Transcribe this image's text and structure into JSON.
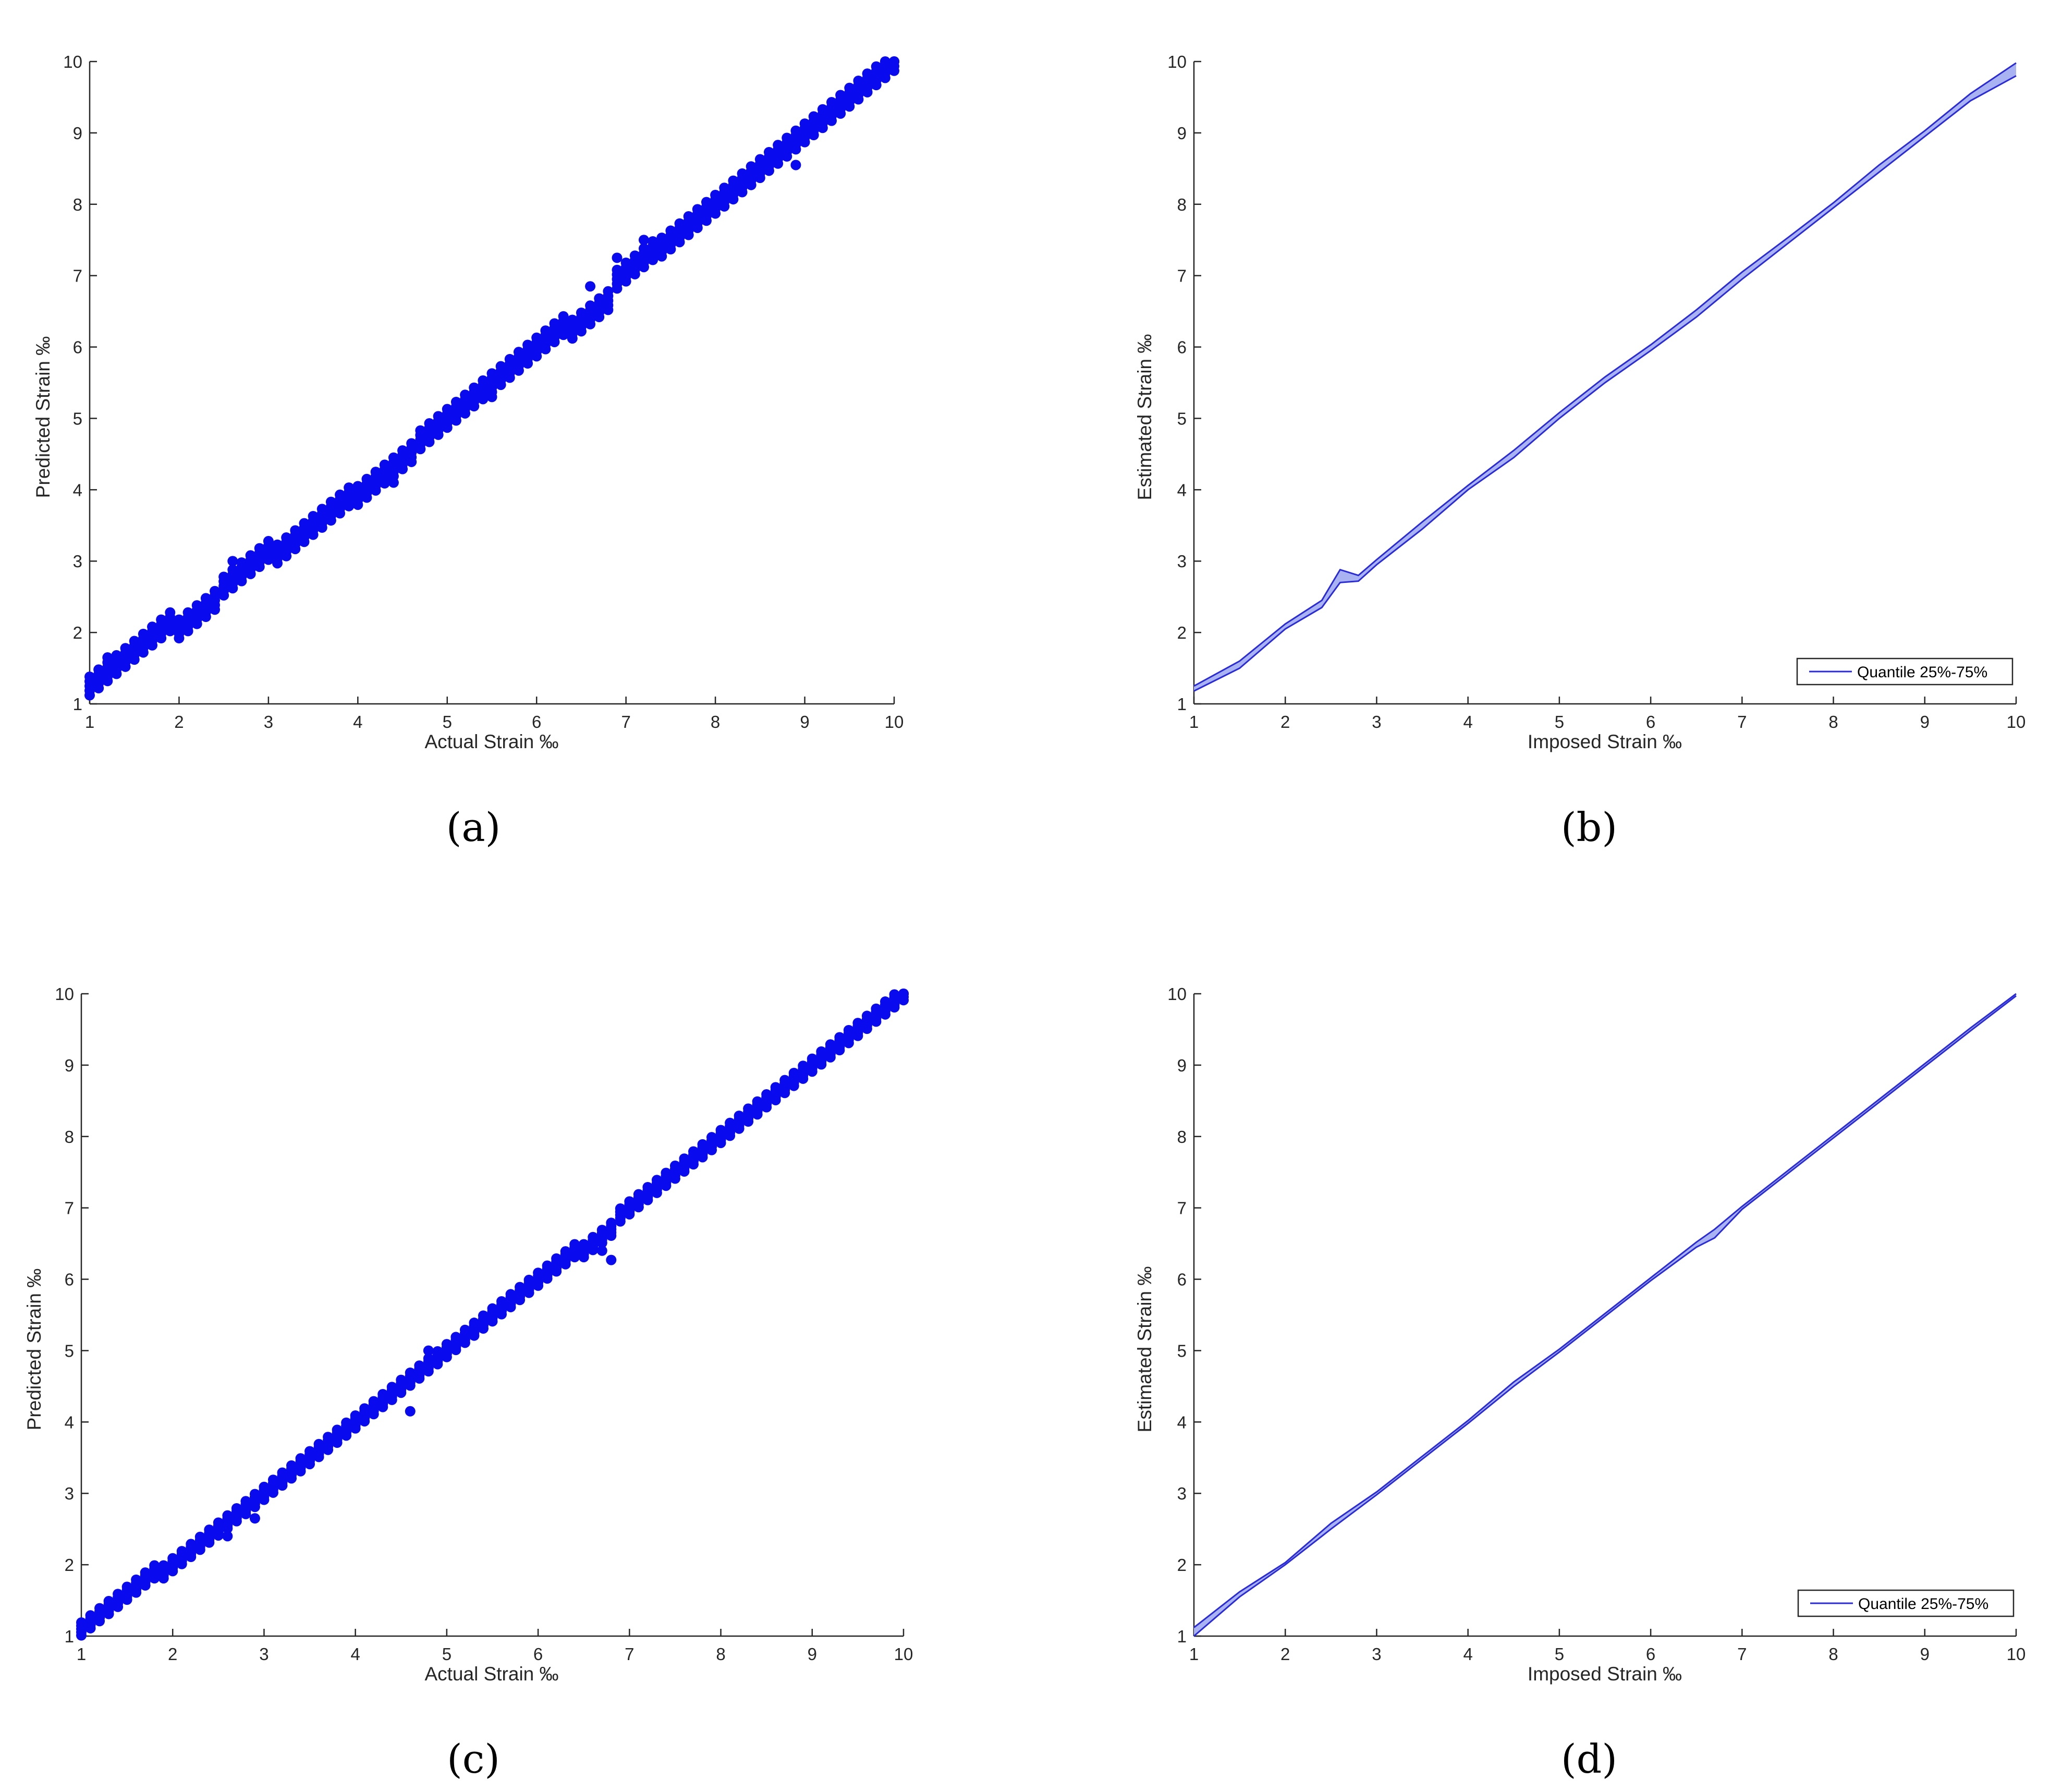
{
  "chart_data": [
    {
      "panel_label": "(a)",
      "type": "scatter",
      "xlabel": "Actual Strain ‰",
      "ylabel": "Predicted Strain ‰",
      "xlim": [
        1,
        10
      ],
      "ylim": [
        1,
        10
      ],
      "xticks": [
        1,
        2,
        3,
        4,
        5,
        6,
        7,
        8,
        9,
        10
      ],
      "yticks": [
        1,
        2,
        3,
        4,
        5,
        6,
        7,
        8,
        9,
        10
      ],
      "x_step": 0.1,
      "spread": 0.13,
      "deviation": [
        {
          "x": [
            1.0,
            2.0
          ],
          "dy": 0.25
        },
        {
          "x": [
            2.0,
            2.4
          ],
          "dy": 0.05
        },
        {
          "x": [
            2.5,
            3.0
          ],
          "dy": 0.15
        },
        {
          "x": [
            4.0,
            4.6
          ],
          "dy": -0.08
        },
        {
          "x": [
            6.4,
            6.9
          ],
          "dy": -0.15
        },
        {
          "x": [
            6.9,
            7.3
          ],
          "dy": 0.05
        },
        {
          "x": [
            8.6,
            8.9
          ],
          "dy": 0.0
        }
      ],
      "outliers": [
        [
          1.2,
          1.65
        ],
        [
          2.6,
          3.0
        ],
        [
          4.4,
          4.1
        ],
        [
          5.5,
          5.3
        ],
        [
          6.6,
          6.85
        ],
        [
          6.9,
          7.25
        ],
        [
          7.2,
          7.5
        ],
        [
          8.9,
          8.55
        ]
      ],
      "color": "#0a0aef",
      "grid": false
    },
    {
      "panel_label": "(b)",
      "type": "area",
      "xlabel": "Imposed Strain ‰",
      "ylabel": "Estimated Strain ‰",
      "xlim": [
        1,
        10
      ],
      "ylim": [
        1,
        10
      ],
      "xticks": [
        1,
        2,
        3,
        4,
        5,
        6,
        7,
        8,
        9,
        10
      ],
      "yticks": [
        1,
        2,
        3,
        4,
        5,
        6,
        7,
        8,
        9,
        10
      ],
      "series": [
        {
          "name": "Quantile 25%-75%",
          "x": [
            1.0,
            1.5,
            2.0,
            2.4,
            2.6,
            2.8,
            3.0,
            3.5,
            4.0,
            4.5,
            5.0,
            5.5,
            6.0,
            6.5,
            7.0,
            7.5,
            8.0,
            8.5,
            9.0,
            9.5,
            10.0
          ],
          "lower": [
            1.18,
            1.5,
            2.05,
            2.35,
            2.7,
            2.72,
            2.95,
            3.45,
            4.0,
            4.45,
            5.0,
            5.5,
            5.95,
            6.42,
            6.95,
            7.45,
            7.95,
            8.45,
            8.95,
            9.45,
            9.8
          ],
          "upper": [
            1.25,
            1.6,
            2.12,
            2.45,
            2.88,
            2.8,
            3.02,
            3.55,
            4.06,
            4.55,
            5.08,
            5.58,
            6.03,
            6.52,
            7.05,
            7.53,
            8.02,
            8.55,
            9.03,
            9.55,
            9.98
          ]
        }
      ],
      "legend": {
        "label": "Quantile 25%-75%",
        "position": "bottom-right"
      },
      "color": "#2b2bd6",
      "fill": "#a9b3f2",
      "grid": false
    },
    {
      "panel_label": "(c)",
      "type": "scatter",
      "xlabel": "Actual Strain ‰",
      "ylabel": "Predicted Strain ‰",
      "xlim": [
        1,
        10
      ],
      "ylim": [
        1,
        10
      ],
      "xticks": [
        1,
        2,
        3,
        4,
        5,
        6,
        7,
        8,
        9,
        10
      ],
      "yticks": [
        1,
        2,
        3,
        4,
        5,
        6,
        7,
        8,
        9,
        10
      ],
      "x_step": 0.1,
      "spread": 0.09,
      "deviation": [
        {
          "x": [
            1.0,
            1.8
          ],
          "dy": 0.1
        },
        {
          "x": [
            6.5,
            6.8
          ],
          "dy": -0.1
        }
      ],
      "outliers": [
        [
          2.6,
          2.4
        ],
        [
          2.9,
          2.65
        ],
        [
          4.6,
          4.15
        ],
        [
          4.8,
          5.0
        ],
        [
          6.7,
          6.4
        ],
        [
          6.8,
          6.27
        ],
        [
          9.9,
          9.85
        ]
      ],
      "color": "#0a0aef",
      "grid": false
    },
    {
      "panel_label": "(d)",
      "type": "area",
      "xlabel": "Imposed Strain ‰",
      "ylabel": "Estimated Strain ‰",
      "xlim": [
        1,
        10
      ],
      "ylim": [
        1,
        10
      ],
      "xticks": [
        1,
        2,
        3,
        4,
        5,
        6,
        7,
        8,
        9,
        10
      ],
      "yticks": [
        1,
        2,
        3,
        4,
        5,
        6,
        7,
        8,
        9,
        10
      ],
      "series": [
        {
          "name": "Quantile 25%-75%",
          "x": [
            1.0,
            1.5,
            2.0,
            2.5,
            3.0,
            3.5,
            4.0,
            4.5,
            5.0,
            5.5,
            6.0,
            6.5,
            6.7,
            7.0,
            7.5,
            8.0,
            8.5,
            9.0,
            9.5,
            10.0
          ],
          "lower": [
            1.0,
            1.55,
            2.0,
            2.5,
            2.98,
            3.48,
            3.98,
            4.5,
            4.98,
            5.48,
            5.98,
            6.45,
            6.58,
            6.98,
            7.48,
            7.98,
            8.48,
            8.98,
            9.48,
            9.97
          ],
          "upper": [
            1.12,
            1.62,
            2.03,
            2.58,
            3.02,
            3.52,
            4.02,
            4.56,
            5.02,
            5.52,
            6.02,
            6.52,
            6.7,
            7.02,
            7.52,
            8.02,
            8.52,
            9.02,
            9.52,
            10.0
          ]
        }
      ],
      "legend": {
        "label": "Quantile 25%-75%",
        "position": "bottom-right"
      },
      "color": "#2b2bd6",
      "fill": "#a9b3f2",
      "grid": false
    }
  ]
}
